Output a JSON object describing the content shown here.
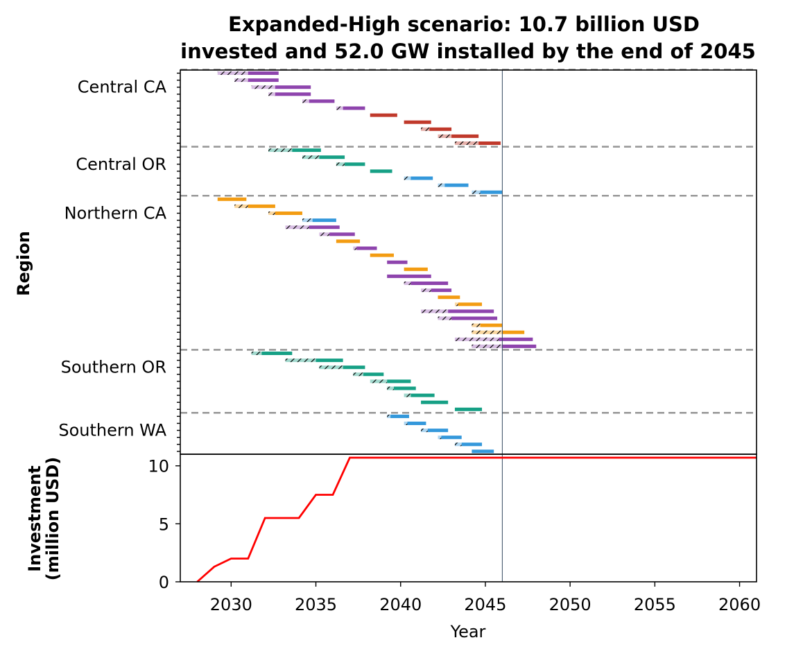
{
  "chart_data": [
    {
      "type": "gantt",
      "title_line1": "Expanded-High scenario: 10.7 billion USD",
      "title_line2": "invested and 52.0 GW installed by the end of 2045",
      "ylabel": "Region",
      "xlim": [
        2027,
        2061
      ],
      "marker_year": 2046,
      "colors": {
        "purple": "#8e44ad",
        "purple_light": "#d7bde2",
        "red": "#c0392b",
        "red_light": "#e6b0aa",
        "teal": "#16a085",
        "teal_light": "#a2d9ce",
        "blue": "#3498db",
        "blue_light": "#aed6f1",
        "orange": "#f39c12",
        "orange_light": "#fad7a0",
        "separator": "#999999",
        "marker": "#34495e"
      },
      "regions": [
        {
          "label": "Central CA",
          "rows": 11
        },
        {
          "label": "Central OR",
          "rows": 7
        },
        {
          "label": "Northern CA",
          "rows": 22
        },
        {
          "label": "Southern OR",
          "rows": 9
        },
        {
          "label": "Southern WA",
          "rows": 6
        }
      ],
      "bars": [
        {
          "row": 0,
          "pre_start": 2029.2,
          "start": 2031.0,
          "end": 2032.8,
          "color": "purple"
        },
        {
          "row": 1,
          "pre_start": 2030.2,
          "start": 2031.0,
          "end": 2032.8,
          "color": "purple"
        },
        {
          "row": 2,
          "pre_start": 2031.2,
          "start": 2032.6,
          "end": 2034.7,
          "color": "purple"
        },
        {
          "row": 3,
          "pre_start": 2032.2,
          "start": 2032.6,
          "end": 2034.7,
          "color": "purple"
        },
        {
          "row": 4,
          "pre_start": 2034.2,
          "start": 2034.6,
          "end": 2036.1,
          "color": "purple"
        },
        {
          "row": 5,
          "pre_start": 2036.2,
          "start": 2036.6,
          "end": 2037.9,
          "color": "purple"
        },
        {
          "row": 6,
          "pre_start": 2038.2,
          "start": 2038.2,
          "end": 2039.8,
          "color": "red"
        },
        {
          "row": 7,
          "pre_start": 2040.2,
          "start": 2040.2,
          "end": 2041.8,
          "color": "red"
        },
        {
          "row": 8,
          "pre_start": 2041.2,
          "start": 2041.7,
          "end": 2043.0,
          "color": "red"
        },
        {
          "row": 9,
          "pre_start": 2042.2,
          "start": 2043.0,
          "end": 2044.6,
          "color": "red"
        },
        {
          "row": 10,
          "pre_start": 2043.2,
          "start": 2044.6,
          "end": 2045.9,
          "color": "red"
        },
        {
          "row": 11,
          "pre_start": 2032.2,
          "start": 2033.6,
          "end": 2035.3,
          "color": "teal"
        },
        {
          "row": 12,
          "pre_start": 2034.2,
          "start": 2035.2,
          "end": 2036.7,
          "color": "teal"
        },
        {
          "row": 13,
          "pre_start": 2036.2,
          "start": 2036.7,
          "end": 2037.9,
          "color": "teal"
        },
        {
          "row": 14,
          "pre_start": 2038.2,
          "start": 2038.2,
          "end": 2039.5,
          "color": "teal"
        },
        {
          "row": 15,
          "pre_start": 2040.2,
          "start": 2040.6,
          "end": 2041.9,
          "color": "blue"
        },
        {
          "row": 16,
          "pre_start": 2042.2,
          "start": 2042.6,
          "end": 2044.0,
          "color": "blue"
        },
        {
          "row": 17,
          "pre_start": 2044.2,
          "start": 2044.7,
          "end": 2046.0,
          "color": "blue"
        },
        {
          "row": 18,
          "pre_start": 2029.2,
          "start": 2029.2,
          "end": 2030.9,
          "color": "orange"
        },
        {
          "row": 19,
          "pre_start": 2030.2,
          "start": 2031.0,
          "end": 2032.6,
          "color": "orange"
        },
        {
          "row": 20,
          "pre_start": 2032.2,
          "start": 2032.6,
          "end": 2034.2,
          "color": "orange"
        },
        {
          "row": 21,
          "pre_start": 2034.2,
          "start": 2034.8,
          "end": 2036.2,
          "color": "blue"
        },
        {
          "row": 22,
          "pre_start": 2033.2,
          "start": 2034.6,
          "end": 2036.4,
          "color": "purple"
        },
        {
          "row": 23,
          "pre_start": 2035.2,
          "start": 2035.8,
          "end": 2037.3,
          "color": "purple"
        },
        {
          "row": 24,
          "pre_start": 2036.2,
          "start": 2036.2,
          "end": 2037.6,
          "color": "orange"
        },
        {
          "row": 25,
          "pre_start": 2037.2,
          "start": 2037.4,
          "end": 2038.6,
          "color": "purple"
        },
        {
          "row": 26,
          "pre_start": 2038.2,
          "start": 2038.2,
          "end": 2039.6,
          "color": "orange"
        },
        {
          "row": 27,
          "pre_start": 2039.2,
          "start": 2039.2,
          "end": 2040.4,
          "color": "purple"
        },
        {
          "row": 28,
          "pre_start": 2040.2,
          "start": 2040.2,
          "end": 2041.6,
          "color": "orange"
        },
        {
          "row": 29,
          "pre_start": 2039.2,
          "start": 2039.2,
          "end": 2041.8,
          "color": "purple"
        },
        {
          "row": 30,
          "pre_start": 2040.2,
          "start": 2040.6,
          "end": 2042.8,
          "color": "purple"
        },
        {
          "row": 31,
          "pre_start": 2041.2,
          "start": 2041.8,
          "end": 2043.0,
          "color": "purple"
        },
        {
          "row": 32,
          "pre_start": 2042.2,
          "start": 2042.2,
          "end": 2043.5,
          "color": "orange"
        },
        {
          "row": 33,
          "pre_start": 2043.2,
          "start": 2043.4,
          "end": 2044.8,
          "color": "orange"
        },
        {
          "row": 34,
          "pre_start": 2041.2,
          "start": 2042.8,
          "end": 2045.5,
          "color": "purple"
        },
        {
          "row": 35,
          "pre_start": 2042.2,
          "start": 2043.0,
          "end": 2045.7,
          "color": "purple"
        },
        {
          "row": 36,
          "pre_start": 2044.2,
          "start": 2044.7,
          "end": 2046.0,
          "color": "orange"
        },
        {
          "row": 37,
          "pre_start": 2044.2,
          "start": 2046.0,
          "end": 2047.3,
          "color": "orange"
        },
        {
          "row": 38,
          "pre_start": 2043.2,
          "start": 2045.8,
          "end": 2047.8,
          "color": "purple"
        },
        {
          "row": 39,
          "pre_start": 2044.2,
          "start": 2046.0,
          "end": 2048.0,
          "color": "purple"
        },
        {
          "row": 40,
          "pre_start": 2031.2,
          "start": 2031.8,
          "end": 2033.6,
          "color": "teal"
        },
        {
          "row": 41,
          "pre_start": 2033.2,
          "start": 2035.0,
          "end": 2036.6,
          "color": "teal"
        },
        {
          "row": 42,
          "pre_start": 2035.2,
          "start": 2036.6,
          "end": 2037.9,
          "color": "teal"
        },
        {
          "row": 43,
          "pre_start": 2037.2,
          "start": 2037.8,
          "end": 2039.0,
          "color": "teal"
        },
        {
          "row": 44,
          "pre_start": 2038.2,
          "start": 2039.2,
          "end": 2040.6,
          "color": "teal"
        },
        {
          "row": 45,
          "pre_start": 2039.2,
          "start": 2039.6,
          "end": 2040.9,
          "color": "teal"
        },
        {
          "row": 46,
          "pre_start": 2040.2,
          "start": 2040.6,
          "end": 2042.0,
          "color": "teal"
        },
        {
          "row": 47,
          "pre_start": 2041.2,
          "start": 2041.2,
          "end": 2042.8,
          "color": "teal"
        },
        {
          "row": 48,
          "pre_start": 2043.2,
          "start": 2043.2,
          "end": 2044.8,
          "color": "teal"
        },
        {
          "row": 49,
          "pre_start": 2039.2,
          "start": 2039.4,
          "end": 2040.5,
          "color": "blue"
        },
        {
          "row": 50,
          "pre_start": 2040.2,
          "start": 2040.4,
          "end": 2041.5,
          "color": "blue"
        },
        {
          "row": 51,
          "pre_start": 2041.2,
          "start": 2041.6,
          "end": 2042.8,
          "color": "blue"
        },
        {
          "row": 52,
          "pre_start": 2042.2,
          "start": 2042.4,
          "end": 2043.6,
          "color": "blue"
        },
        {
          "row": 53,
          "pre_start": 2043.2,
          "start": 2043.6,
          "end": 2044.8,
          "color": "blue"
        },
        {
          "row": 54,
          "pre_start": 2044.2,
          "start": 2044.2,
          "end": 2045.5,
          "color": "blue"
        }
      ]
    },
    {
      "type": "line",
      "xlabel": "Year",
      "ylabel_line1": "Investment",
      "ylabel_line2": "(million USD)",
      "xlim": [
        2027,
        2061
      ],
      "ylim": [
        0,
        11
      ],
      "xticks": [
        2030,
        2035,
        2040,
        2045,
        2050,
        2055,
        2060
      ],
      "yticks": [
        0,
        5,
        10
      ],
      "line_color": "#ff0000",
      "x": [
        2028.0,
        2029.0,
        2030.0,
        2031.0,
        2032.0,
        2033.0,
        2034.0,
        2035.0,
        2036.0,
        2037.0,
        2061.0
      ],
      "y": [
        0,
        1.3,
        2.0,
        2.0,
        5.5,
        5.5,
        5.5,
        7.5,
        7.5,
        10.7,
        10.7
      ]
    }
  ]
}
